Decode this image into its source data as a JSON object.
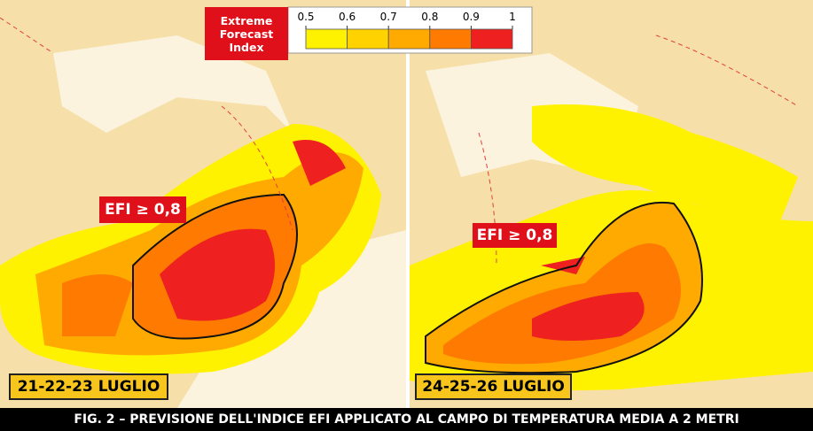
{
  "legend": {
    "title": "Extreme Forecast Index",
    "ticks": [
      0.5,
      0.6,
      0.7,
      0.8,
      0.9,
      1
    ],
    "colors": [
      "#fff200",
      "#ffd200",
      "#ffaa00",
      "#ff7a00",
      "#ee2020"
    ]
  },
  "panels": [
    {
      "date": "21-22-23 LUGLIO",
      "label": "EFI ≥ 0,8"
    },
    {
      "date": "24-25-26 LUGLIO",
      "label": "EFI ≥ 0,8"
    }
  ],
  "caption": "FIG. 2 – PREVISIONE DELL'INDICE EFI APPLICATO AL CAMPO DI TEMPERATURA MEDIA A 2 METRI"
}
